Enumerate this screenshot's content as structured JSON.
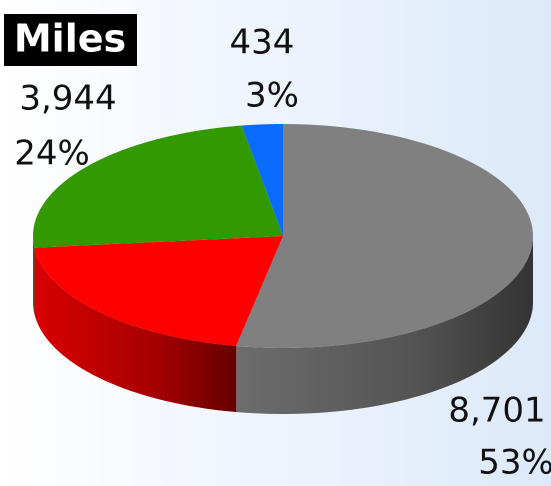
{
  "chart_data": {
    "type": "pie",
    "title": "Miles",
    "categories": [
      null,
      null,
      null,
      null
    ],
    "values": [
      8701,
      3338,
      3944,
      434
    ],
    "value_labels": [
      "8,701",
      null,
      "3,944",
      "434"
    ],
    "percent_labels": [
      "53%",
      null,
      "24%",
      "3%"
    ],
    "colors": [
      "#808080",
      "#ff0000",
      "#339900",
      "#0a6cff"
    ]
  }
}
